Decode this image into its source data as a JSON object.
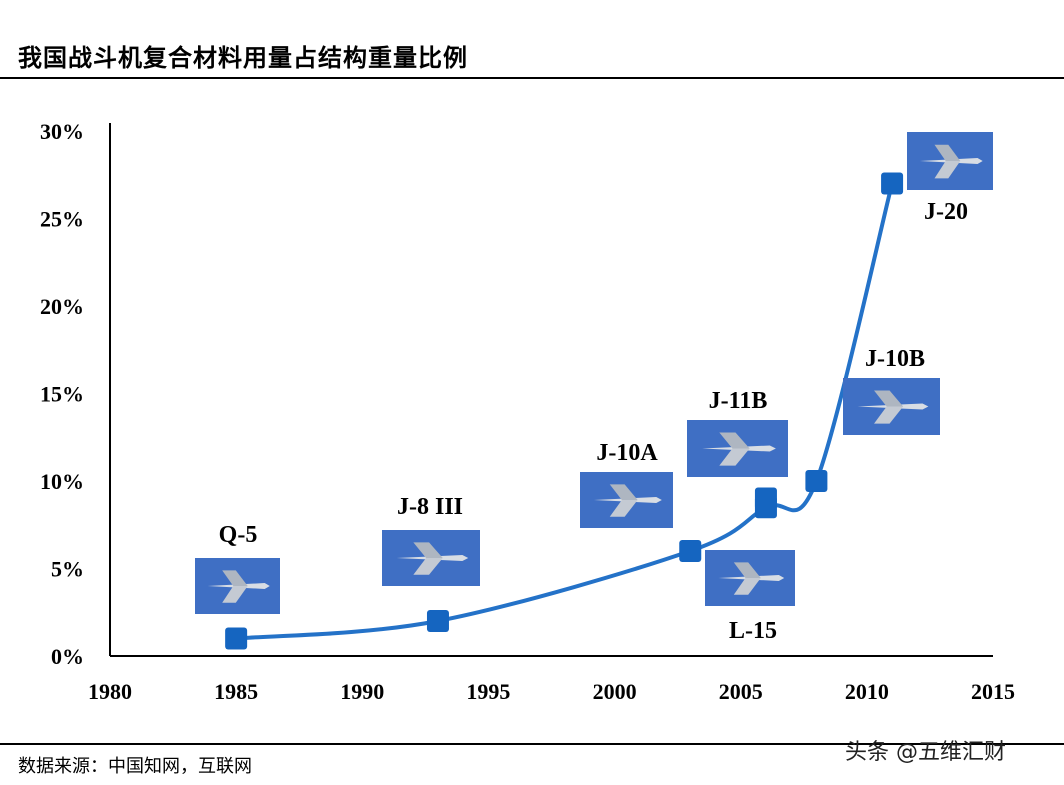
{
  "header": {
    "title": "我国战斗机复合材料用量占结构重量比例"
  },
  "footer": {
    "source": "数据来源：中国知网，互联网",
    "watermark": "头条 @五维汇财"
  },
  "colors": {
    "line": "#2472c8",
    "marker": "#1565c0",
    "photo_sky": "#3f6fc4",
    "axis": "#000000"
  },
  "chart_data": {
    "type": "line",
    "title": "我国战斗机复合材料用量占结构重量比例",
    "xlabel": "",
    "ylabel": "",
    "xlim": [
      1980,
      2015
    ],
    "ylim": [
      0,
      30
    ],
    "xticks": [
      "1980",
      "1985",
      "1990",
      "1995",
      "2000",
      "2005",
      "2010",
      "2015"
    ],
    "yticks": [
      "0%",
      "5%",
      "10%",
      "15%",
      "20%",
      "25%",
      "30%"
    ],
    "grid": false,
    "series": [
      {
        "points": [
          {
            "label": "Q-5",
            "x": 1985,
            "y": 1
          },
          {
            "label": "J-8 III",
            "x": 1993,
            "y": 2
          },
          {
            "label": "L-15",
            "x": 2003,
            "y": 6
          },
          {
            "label": "J-10A",
            "x": 2006,
            "y": 8.5
          },
          {
            "label": "J-11B",
            "x": 2006,
            "y": 9
          },
          {
            "label": "J-10B",
            "x": 2008,
            "y": 10
          },
          {
            "label": "J-20",
            "x": 2011,
            "y": 27
          }
        ]
      }
    ],
    "annotations": [
      "Q-5",
      "J-8 III",
      "J-10A",
      "J-11B",
      "L-15",
      "J-10B",
      "J-20"
    ]
  }
}
